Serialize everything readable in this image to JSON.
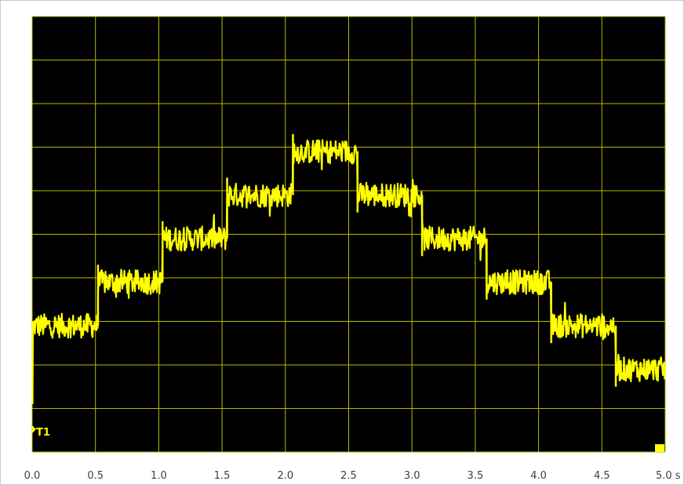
{
  "chart_data": {
    "type": "line",
    "title": "",
    "xlabel": "",
    "ylabel": "",
    "xlim": [
      0.0,
      5.0
    ],
    "ylim": [
      0,
      10
    ],
    "x_unit": "s",
    "x_ticks": [
      0.0,
      0.5,
      1.0,
      1.5,
      2.0,
      2.5,
      3.0,
      3.5,
      4.0,
      4.5,
      5.0
    ],
    "x_tick_labels": [
      "0.0",
      "0.5",
      "1.0",
      "1.5",
      "2.0",
      "2.5",
      "3.0",
      "3.5",
      "4.0",
      "4.5",
      "5.0 s"
    ],
    "y_gridlines": 10,
    "grid": true,
    "background_color": "#000000",
    "grid_color": "#b8b800",
    "series": [
      {
        "name": "T1",
        "color": "#ffff00",
        "noise_amplitude": 0.28,
        "steps": [
          {
            "x_start": 0.0,
            "x_end": 0.52,
            "y": 2.9
          },
          {
            "x_start": 0.52,
            "x_end": 1.03,
            "y": 3.9
          },
          {
            "x_start": 1.03,
            "x_end": 1.54,
            "y": 4.9
          },
          {
            "x_start": 1.54,
            "x_end": 2.06,
            "y": 5.9
          },
          {
            "x_start": 2.06,
            "x_end": 2.57,
            "y": 6.9
          },
          {
            "x_start": 2.57,
            "x_end": 3.08,
            "y": 5.9
          },
          {
            "x_start": 3.08,
            "x_end": 3.59,
            "y": 4.9
          },
          {
            "x_start": 3.59,
            "x_end": 4.1,
            "y": 3.9
          },
          {
            "x_start": 4.1,
            "x_end": 4.61,
            "y": 2.9
          },
          {
            "x_start": 4.61,
            "x_end": 5.0,
            "y": 1.9
          }
        ]
      }
    ]
  }
}
